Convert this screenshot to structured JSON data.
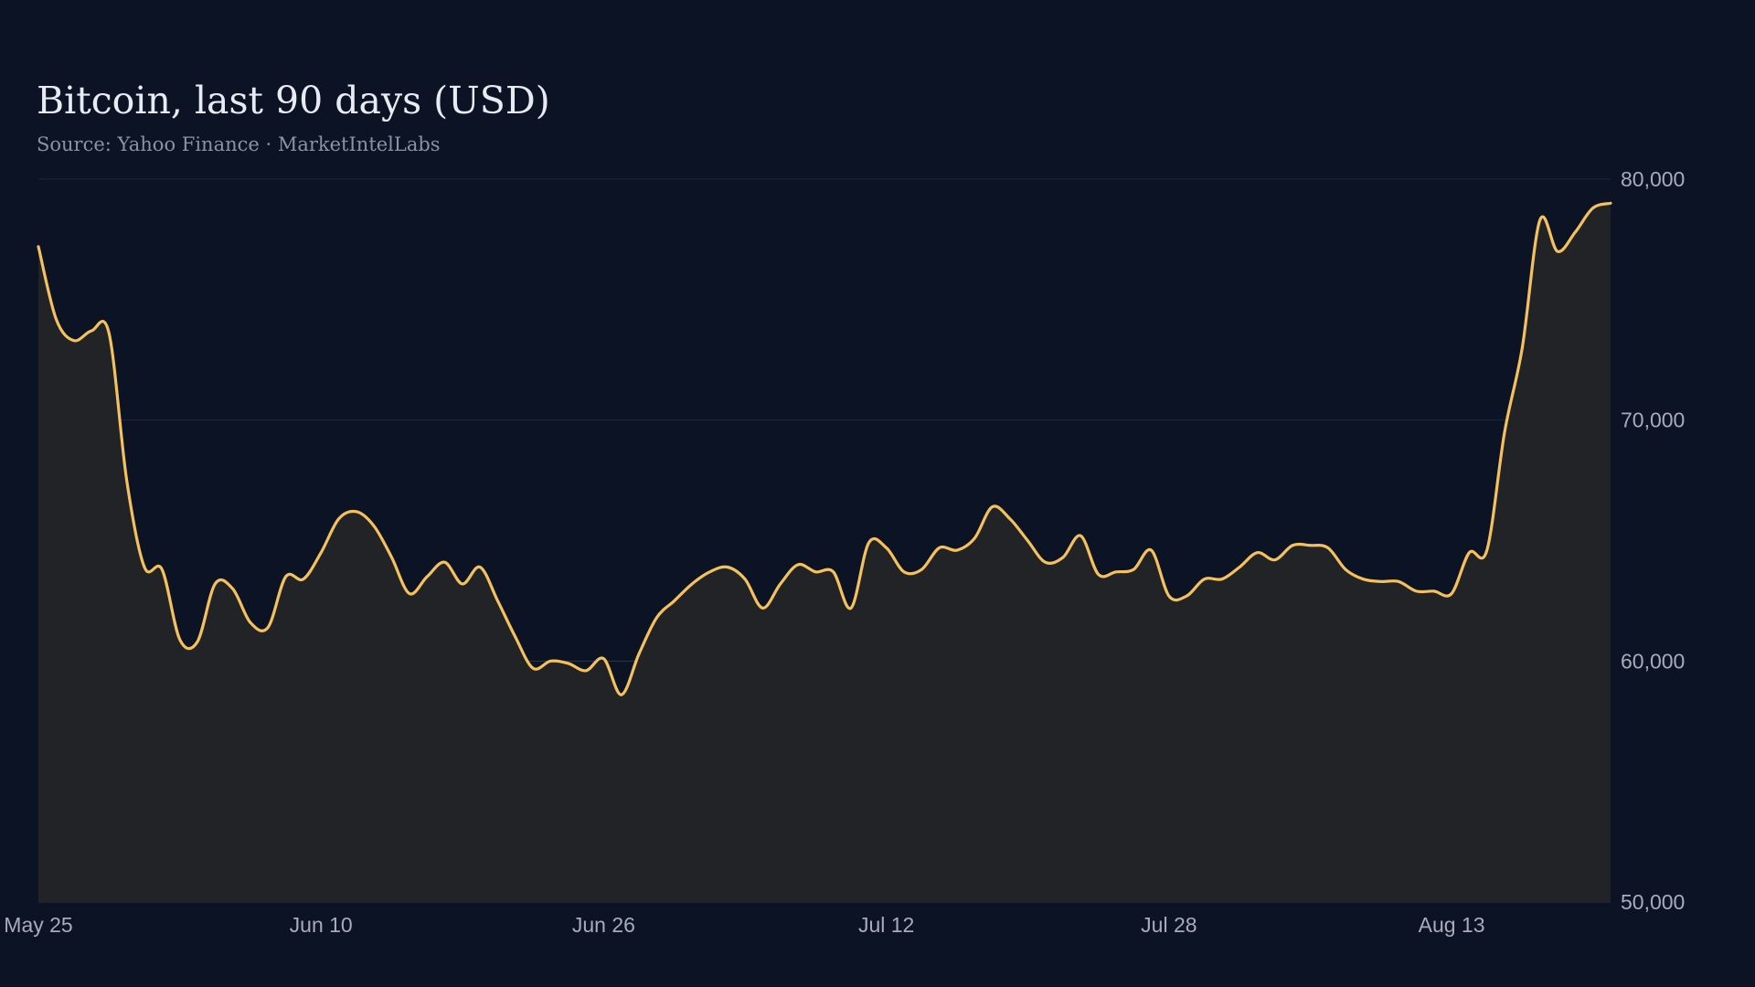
{
  "chart_data": {
    "type": "area",
    "title": "Bitcoin, last 90 days (USD)",
    "subtitle": "Source: Yahoo Finance · MarketIntelLabs",
    "xlabel": "",
    "ylabel": "",
    "ylim": [
      50000,
      80000
    ],
    "yticks": [
      50000,
      60000,
      70000,
      80000
    ],
    "ytick_labels": [
      "50,000",
      "60,000",
      "70,000",
      "80,000"
    ],
    "yaxis_position": "right",
    "xticks": [
      "May 25",
      "Jun 10",
      "Jun 26",
      "Jul 12",
      "Jul 28",
      "Aug 13"
    ],
    "grid": true,
    "x": [
      "May 25",
      "May 26",
      "May 27",
      "May 28",
      "May 29",
      "May 30",
      "May 31",
      "Jun 1",
      "Jun 2",
      "Jun 3",
      "Jun 4",
      "Jun 5",
      "Jun 6",
      "Jun 7",
      "Jun 8",
      "Jun 9",
      "Jun 10",
      "Jun 11",
      "Jun 12",
      "Jun 13",
      "Jun 14",
      "Jun 15",
      "Jun 16",
      "Jun 17",
      "Jun 18",
      "Jun 19",
      "Jun 20",
      "Jun 21",
      "Jun 22",
      "Jun 23",
      "Jun 24",
      "Jun 25",
      "Jun 26",
      "Jun 27",
      "Jun 28",
      "Jun 29",
      "Jun 30",
      "Jul 1",
      "Jul 2",
      "Jul 3",
      "Jul 4",
      "Jul 5",
      "Jul 6",
      "Jul 7",
      "Jul 8",
      "Jul 9",
      "Jul 10",
      "Jul 11",
      "Jul 12",
      "Jul 13",
      "Jul 14",
      "Jul 15",
      "Jul 16",
      "Jul 17",
      "Jul 18",
      "Jul 19",
      "Jul 20",
      "Jul 21",
      "Jul 22",
      "Jul 23",
      "Jul 24",
      "Jul 25",
      "Jul 26",
      "Jul 27",
      "Jul 28",
      "Jul 29",
      "Jul 30",
      "Jul 31",
      "Aug 1",
      "Aug 2",
      "Aug 3",
      "Aug 4",
      "Aug 5",
      "Aug 6",
      "Aug 7",
      "Aug 8",
      "Aug 9",
      "Aug 10",
      "Aug 11",
      "Aug 12",
      "Aug 13",
      "Aug 14",
      "Aug 15",
      "Aug 16",
      "Aug 17",
      "Aug 18",
      "Aug 19",
      "Aug 20",
      "Aug 21",
      "Aug 22"
    ],
    "series": [
      {
        "values": [
          77200,
          74200,
          73300,
          73700,
          73600,
          67500,
          63900,
          63800,
          60900,
          60800,
          63200,
          63000,
          61600,
          61400,
          63500,
          63400,
          64500,
          65900,
          66200,
          65600,
          64300,
          62800,
          63500,
          64100,
          63200,
          63900,
          62500,
          61000,
          59700,
          60000,
          59900,
          59600,
          60100,
          58600,
          60300,
          61800,
          62500,
          63200,
          63700,
          63900,
          63400,
          62200,
          63200,
          64000,
          63700,
          63700,
          62200,
          64900,
          64700,
          63700,
          63800,
          64700,
          64600,
          65100,
          66400,
          65900,
          65000,
          64100,
          64300,
          65200,
          63600,
          63700,
          63800,
          64600,
          62700,
          62700,
          63400,
          63400,
          63900,
          64500,
          64200,
          64800,
          64800,
          64700,
          63800,
          63400,
          63300,
          63300,
          62900,
          62900,
          62800,
          64500,
          64600,
          69500,
          73000,
          78300,
          77000,
          77800,
          78800,
          79000
        ]
      }
    ],
    "colors": {
      "background": "#0c1324",
      "plot_background": "#212326",
      "line": "#f5c15c",
      "grid": "#1c2a36",
      "tick_text": "#a7adb8"
    }
  }
}
